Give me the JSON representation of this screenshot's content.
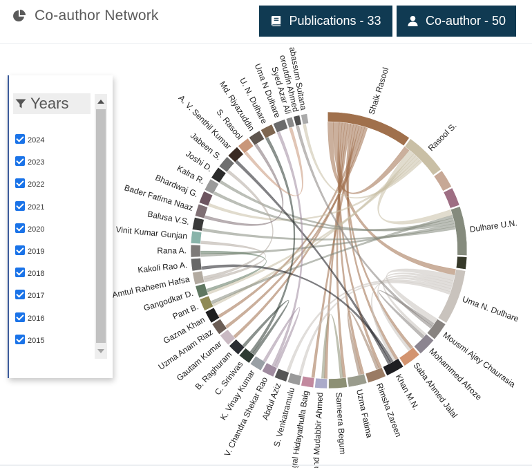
{
  "header": {
    "title": "Co-author Network",
    "publications_label": "Publications - 33",
    "coauthor_label": "Co-author - 50"
  },
  "filter": {
    "title": "Years",
    "years": [
      {
        "label": "2024",
        "checked": true
      },
      {
        "label": "2023",
        "checked": true
      },
      {
        "label": "2022",
        "checked": true
      },
      {
        "label": "2021",
        "checked": true
      },
      {
        "label": "2020",
        "checked": true
      },
      {
        "label": "2019",
        "checked": true
      },
      {
        "label": "2018",
        "checked": true
      },
      {
        "label": "2017",
        "checked": true
      },
      {
        "label": "2016",
        "checked": true
      },
      {
        "label": "2015",
        "checked": true
      }
    ]
  },
  "colors": {
    "primary_button": "#103a52",
    "checkbox": "#1a73e8"
  },
  "chart_data": {
    "type": "chord",
    "nodes": [
      {
        "name": "Shaik Rasool",
        "value": 14,
        "color": "#a0704c"
      },
      {
        "name": "Rasool S.",
        "value": 7,
        "color": "#c9bfa5"
      },
      {
        "name": "",
        "value": 3,
        "color": "#c7a896"
      },
      {
        "name": "",
        "value": 3,
        "color": "#9e6e83"
      },
      {
        "name": "Dulhare U.N.",
        "value": 8,
        "color": "#858b7d"
      },
      {
        "name": "",
        "value": 2,
        "color": "#363929"
      },
      {
        "name": "Uma N. Dulhare",
        "value": 9,
        "color": "#c9c3bd"
      },
      {
        "name": "Mousmi Ajay Chaurasia",
        "value": 3,
        "color": "#888380"
      },
      {
        "name": "Mohammed Afroze",
        "value": 3,
        "color": "#8c8590"
      },
      {
        "name": "Saba Ahmed Jalal",
        "value": 3,
        "color": "#d39470"
      },
      {
        "name": "Khan M.N.",
        "value": 3,
        "color": "#1e1e22"
      },
      {
        "name": "Rimsha Zareen",
        "value": 3,
        "color": "#9a7b64"
      },
      {
        "name": "Uzma Fatima",
        "value": 3,
        "color": "#9a9c8d"
      },
      {
        "name": "Sameera Begum",
        "value": 3,
        "color": "#8d9075"
      },
      {
        "name": "Mohd Mudabbir Ahmed",
        "value": 2,
        "color": "#aaaac9"
      },
      {
        "name": "Mogal Hidayathulla Baig",
        "value": 2,
        "color": "#c2899e"
      },
      {
        "name": "S. Venkatramulu",
        "value": 2,
        "color": "#9a9a9a"
      },
      {
        "name": "Abdul Aziz",
        "value": 2,
        "color": "#555555"
      },
      {
        "name": "V. Chandra Shekar Rao",
        "value": 2,
        "color": "#a08ca0"
      },
      {
        "name": "K. Vinay Kumar",
        "value": 2,
        "color": "#99a0a5"
      },
      {
        "name": "C. Srinivas",
        "value": 2,
        "color": "#2e3b33"
      },
      {
        "name": "B. Raghuram",
        "value": 2,
        "color": "#2a2d33"
      },
      {
        "name": "Gautam Kumar",
        "value": 2,
        "color": "#c9b9c2"
      },
      {
        "name": "Uzma Anam Riaz",
        "value": 2,
        "color": "#6b5d55"
      },
      {
        "name": "Gazna Khan",
        "value": 2,
        "color": "#1f1f1f"
      },
      {
        "name": "Pant B.",
        "value": 2,
        "color": "#8f8a55"
      },
      {
        "name": "Gangodkar D.",
        "value": 2,
        "color": "#5f7761"
      },
      {
        "name": "Amtul Raheem Hafsa",
        "value": 2,
        "color": "#b2aaa0"
      },
      {
        "name": "Kakoli Rao A.",
        "value": 2,
        "color": "#686868"
      },
      {
        "name": "Rana A.",
        "value": 2,
        "color": "#7d7a78"
      },
      {
        "name": "Vinit Kumar Gunjan",
        "value": 2,
        "color": "#89b4aa"
      },
      {
        "name": "Balusa V.S.",
        "value": 2,
        "color": "#3a3a3a"
      },
      {
        "name": "Bader Fatima Naaz",
        "value": 2,
        "color": "#7f6f74"
      },
      {
        "name": "Bhardwaj G.",
        "value": 2,
        "color": "#6d5560"
      },
      {
        "name": "Kalra R.",
        "value": 2,
        "color": "#9a9a9a"
      },
      {
        "name": "Joshi D.",
        "value": 2,
        "color": "#2b2b2b"
      },
      {
        "name": "Jabeen S.",
        "value": 2,
        "color": "#6f6f6f"
      },
      {
        "name": "A. V. Senthil Kumar",
        "value": 2,
        "color": "#3a2a22"
      },
      {
        "name": "S. Rasool",
        "value": 2,
        "color": "#c9977a"
      },
      {
        "name": "Md. Riyazuddin",
        "value": 2,
        "color": "#5f564f"
      },
      {
        "name": "U. N. Dulhare",
        "value": 2,
        "color": "#7e6650"
      },
      {
        "name": "Uma N Dulhare",
        "value": 2,
        "color": "#6b6b6b"
      },
      {
        "name": "Syed Azar Ali",
        "value": 1,
        "color": "#8a8a8a"
      },
      {
        "name": "oroutdin Ahmed",
        "value": 1,
        "color": "#4f4f4f"
      },
      {
        "name": "abassum Sultana",
        "value": 1,
        "color": "#aaaaaa"
      }
    ],
    "links": [
      {
        "source": "Shaik Rasool",
        "target": "Rasool S.",
        "value": 2
      },
      {
        "source": "Shaik Rasool",
        "target": "Uma N. Dulhare",
        "value": 2
      },
      {
        "source": "Shaik Rasool",
        "target": "Rimsha Zareen",
        "value": 1
      },
      {
        "source": "Shaik Rasool",
        "target": "Uzma Fatima",
        "value": 1
      },
      {
        "source": "Shaik Rasool",
        "target": "Sameera Begum",
        "value": 1
      },
      {
        "source": "Shaik Rasool",
        "target": "Mohd Mudabbir Ahmed",
        "value": 1
      },
      {
        "source": "Shaik Rasool",
        "target": "Saba Ahmed Jalal",
        "value": 1
      },
      {
        "source": "Shaik Rasool",
        "target": "Khan M.N.",
        "value": 1
      },
      {
        "source": "Shaik Rasool",
        "target": "Mogal Hidayathulla Baig",
        "value": 1
      },
      {
        "source": "Shaik Rasool",
        "target": "Gazna Khan",
        "value": 1
      },
      {
        "source": "Shaik Rasool",
        "target": "Gautam Kumar",
        "value": 1
      },
      {
        "source": "Shaik Rasool",
        "target": "Uzma Anam Riaz",
        "value": 1
      },
      {
        "source": "Rasool S.",
        "target": "Dulhare U.N.",
        "value": 2
      },
      {
        "source": "Rasool S.",
        "target": "Pant B.",
        "value": 1
      },
      {
        "source": "Rasool S.",
        "target": "Gangodkar D.",
        "value": 1
      },
      {
        "source": "Rasool S.",
        "target": "Bhardwaj G.",
        "value": 1
      },
      {
        "source": "Dulhare U.N.",
        "target": "Pant B.",
        "value": 1
      },
      {
        "source": "Dulhare U.N.",
        "target": "Kalra R.",
        "value": 1
      },
      {
        "source": "Dulhare U.N.",
        "target": "Joshi D.",
        "value": 1
      },
      {
        "source": "Dulhare U.N.",
        "target": "Rana A.",
        "value": 1
      },
      {
        "source": "Dulhare U.N.",
        "target": "Balusa V.S.",
        "value": 1
      },
      {
        "source": "Uma N. Dulhare",
        "target": "Mousmi Ajay Chaurasia",
        "value": 2
      },
      {
        "source": "Uma N. Dulhare",
        "target": "Mohammed Afroze",
        "value": 1
      },
      {
        "source": "Uma N. Dulhare",
        "target": "Saba Ahmed Jalal",
        "value": 1
      },
      {
        "source": "Uma N. Dulhare",
        "target": "Khan M.N.",
        "value": 1
      },
      {
        "source": "Uma N. Dulhare",
        "target": "Abdul Aziz",
        "value": 1
      },
      {
        "source": "Uma N. Dulhare",
        "target": "S. Venkatramulu",
        "value": 1
      },
      {
        "source": "Mousmi Ajay Chaurasia",
        "target": "Mohammed Afroze",
        "value": 1
      },
      {
        "source": "Khan M.N.",
        "target": "Kakoli Rao A.",
        "value": 1
      },
      {
        "source": "Khan M.N.",
        "target": "A. V. Senthil Kumar",
        "value": 1
      },
      {
        "source": "Rimsha Zareen",
        "target": "Uzma Fatima",
        "value": 1
      },
      {
        "source": "Sameera Begum",
        "target": "Mohd Mudabbir Ahmed",
        "value": 1
      },
      {
        "source": "V. Chandra Shekar Rao",
        "target": "K. Vinay Kumar",
        "value": 1
      },
      {
        "source": "V. Chandra Shekar Rao",
        "target": "Uma N Dulhare",
        "value": 1
      },
      {
        "source": "C. Srinivas",
        "target": "B. Raghuram",
        "value": 1
      },
      {
        "source": "C. Srinivas",
        "target": "U. N. Dulhare",
        "value": 1
      },
      {
        "source": "Amtul Raheem Hafsa",
        "target": "Vinit Kumar Gunjan",
        "value": 1
      },
      {
        "source": "Amtul Raheem Hafsa",
        "target": "Jabeen S.",
        "value": 1
      },
      {
        "source": "Bader Fatima Naaz",
        "target": "Md. Riyazuddin",
        "value": 1
      },
      {
        "source": "S. Rasool",
        "target": "Syed Azar Ali",
        "value": 1
      },
      {
        "source": "Gangodkar D.",
        "target": "Rana A.",
        "value": 1
      },
      {
        "source": "Mousmi Ajay Chaurasia",
        "target": "oroutdin Ahmed",
        "value": 1
      },
      {
        "source": "Rasool S.",
        "target": "abassum Sultana",
        "value": 1
      }
    ]
  }
}
